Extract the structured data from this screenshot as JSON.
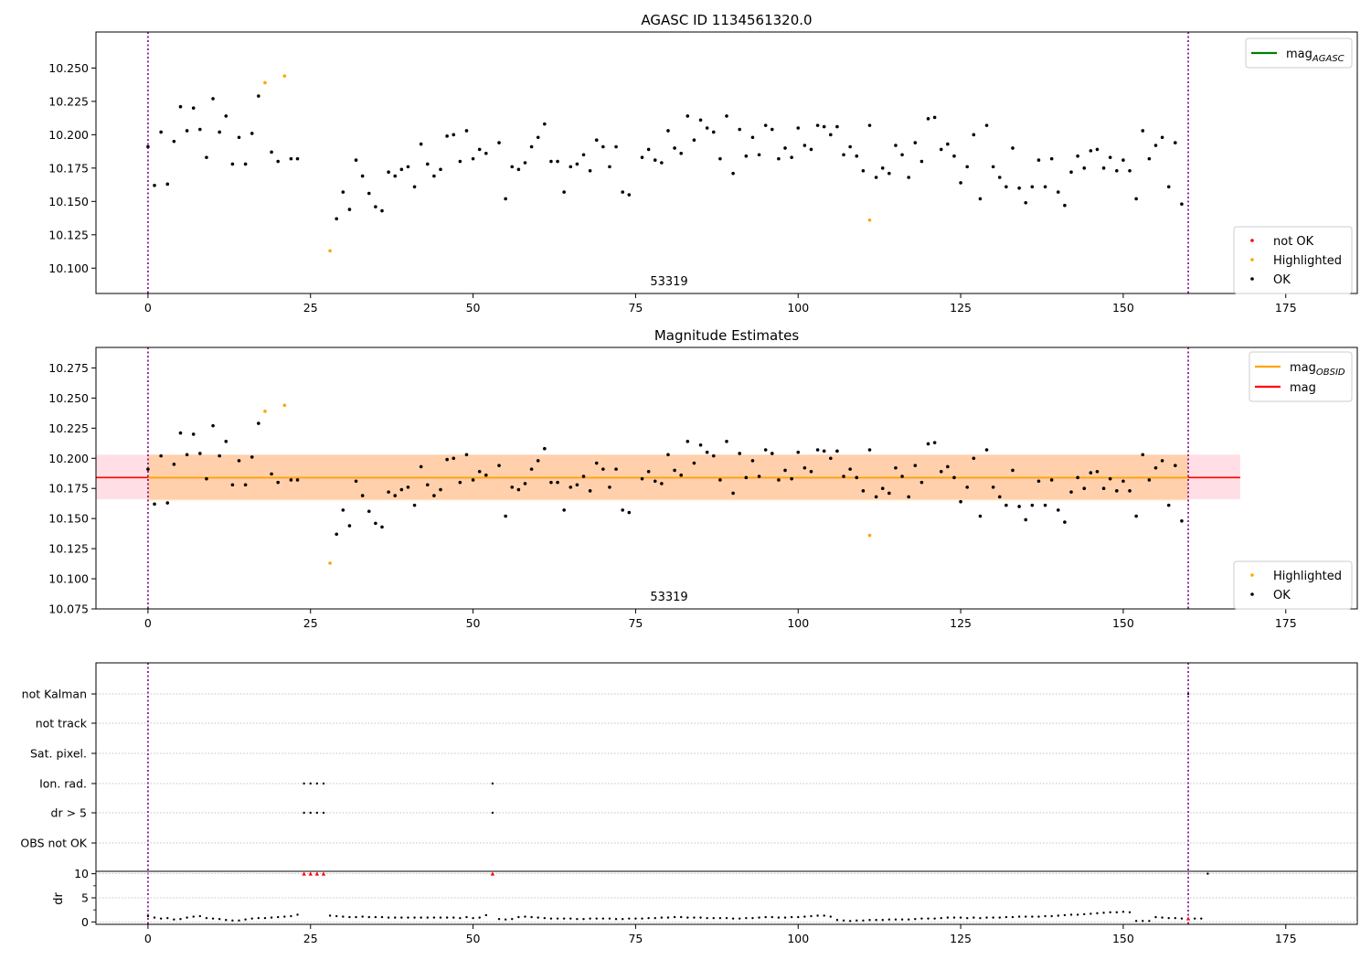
{
  "chart_data": [
    {
      "type": "scatter",
      "title": "AGASC ID 1134561320.0",
      "annotation": "53319",
      "xlim": [
        -8,
        186
      ],
      "ylim": [
        10.081,
        10.277
      ],
      "xticks": [
        "0",
        "25",
        "50",
        "75",
        "100",
        "125",
        "150",
        "175"
      ],
      "yticks": [
        "10.100",
        "10.125",
        "10.150",
        "10.175",
        "10.200",
        "10.225",
        "10.250"
      ],
      "vlines": [
        0,
        160
      ],
      "legend_lines": [
        {
          "label": "mag",
          "sub": "AGASC",
          "color": "#008000"
        }
      ],
      "legend_points": [
        {
          "label": "not OK",
          "color": "#ff0000"
        },
        {
          "label": "Highlighted",
          "color": "#ffa500"
        },
        {
          "label": "OK",
          "color": "#000000"
        }
      ],
      "series": [
        {
          "name": "OK",
          "color": "#000000",
          "points": [
            [
              0,
              10.191
            ],
            [
              1,
              10.162
            ],
            [
              2,
              10.202
            ],
            [
              3,
              10.163
            ],
            [
              4,
              10.195
            ],
            [
              5,
              10.221
            ],
            [
              6,
              10.203
            ],
            [
              7,
              10.22
            ],
            [
              8,
              10.204
            ],
            [
              9,
              10.183
            ],
            [
              10,
              10.227
            ],
            [
              11,
              10.202
            ],
            [
              12,
              10.214
            ],
            [
              13,
              10.178
            ],
            [
              14,
              10.198
            ],
            [
              15,
              10.178
            ],
            [
              16,
              10.201
            ],
            [
              17,
              10.229
            ],
            [
              19,
              10.187
            ],
            [
              20,
              10.18
            ],
            [
              22,
              10.182
            ],
            [
              23,
              10.182
            ],
            [
              29,
              10.137
            ],
            [
              30,
              10.157
            ],
            [
              31,
              10.144
            ],
            [
              32,
              10.181
            ],
            [
              33,
              10.169
            ],
            [
              34,
              10.156
            ],
            [
              35,
              10.146
            ],
            [
              36,
              10.143
            ],
            [
              37,
              10.172
            ],
            [
              38,
              10.169
            ],
            [
              39,
              10.174
            ],
            [
              40,
              10.176
            ],
            [
              41,
              10.161
            ],
            [
              42,
              10.193
            ],
            [
              43,
              10.178
            ],
            [
              44,
              10.169
            ],
            [
              45,
              10.174
            ],
            [
              46,
              10.199
            ],
            [
              47,
              10.2
            ],
            [
              48,
              10.18
            ],
            [
              49,
              10.203
            ],
            [
              50,
              10.182
            ],
            [
              51,
              10.189
            ],
            [
              52,
              10.186
            ],
            [
              54,
              10.194
            ],
            [
              55,
              10.152
            ],
            [
              56,
              10.176
            ],
            [
              57,
              10.174
            ],
            [
              58,
              10.179
            ],
            [
              59,
              10.191
            ],
            [
              60,
              10.198
            ],
            [
              61,
              10.208
            ],
            [
              62,
              10.18
            ],
            [
              63,
              10.18
            ],
            [
              64,
              10.157
            ],
            [
              65,
              10.176
            ],
            [
              66,
              10.178
            ],
            [
              67,
              10.185
            ],
            [
              68,
              10.173
            ],
            [
              69,
              10.196
            ],
            [
              70,
              10.191
            ],
            [
              71,
              10.176
            ],
            [
              72,
              10.191
            ],
            [
              73,
              10.157
            ],
            [
              74,
              10.155
            ],
            [
              76,
              10.183
            ],
            [
              77,
              10.189
            ],
            [
              78,
              10.181
            ],
            [
              79,
              10.179
            ],
            [
              80,
              10.203
            ],
            [
              81,
              10.19
            ],
            [
              82,
              10.186
            ],
            [
              83,
              10.214
            ],
            [
              84,
              10.196
            ],
            [
              85,
              10.211
            ],
            [
              86,
              10.205
            ],
            [
              87,
              10.202
            ],
            [
              88,
              10.182
            ],
            [
              89,
              10.214
            ],
            [
              90,
              10.171
            ],
            [
              91,
              10.204
            ],
            [
              92,
              10.184
            ],
            [
              93,
              10.198
            ],
            [
              94,
              10.185
            ],
            [
              95,
              10.207
            ],
            [
              96,
              10.204
            ],
            [
              97,
              10.182
            ],
            [
              98,
              10.19
            ],
            [
              99,
              10.183
            ],
            [
              100,
              10.205
            ],
            [
              101,
              10.192
            ],
            [
              102,
              10.189
            ],
            [
              103,
              10.207
            ],
            [
              104,
              10.206
            ],
            [
              105,
              10.2
            ],
            [
              106,
              10.206
            ],
            [
              107,
              10.185
            ],
            [
              108,
              10.191
            ],
            [
              109,
              10.184
            ],
            [
              110,
              10.173
            ],
            [
              111,
              10.207
            ],
            [
              112,
              10.168
            ],
            [
              113,
              10.175
            ],
            [
              114,
              10.171
            ],
            [
              115,
              10.192
            ],
            [
              116,
              10.185
            ],
            [
              117,
              10.168
            ],
            [
              118,
              10.194
            ],
            [
              119,
              10.18
            ],
            [
              120,
              10.212
            ],
            [
              121,
              10.213
            ],
            [
              122,
              10.189
            ],
            [
              123,
              10.193
            ],
            [
              124,
              10.184
            ],
            [
              125,
              10.164
            ],
            [
              126,
              10.176
            ],
            [
              127,
              10.2
            ],
            [
              128,
              10.152
            ],
            [
              129,
              10.207
            ],
            [
              130,
              10.176
            ],
            [
              131,
              10.168
            ],
            [
              132,
              10.161
            ],
            [
              133,
              10.19
            ],
            [
              134,
              10.16
            ],
            [
              135,
              10.149
            ],
            [
              136,
              10.161
            ],
            [
              137,
              10.181
            ],
            [
              138,
              10.161
            ],
            [
              139,
              10.182
            ],
            [
              140,
              10.157
            ],
            [
              141,
              10.147
            ],
            [
              142,
              10.172
            ],
            [
              143,
              10.184
            ],
            [
              144,
              10.175
            ],
            [
              145,
              10.188
            ],
            [
              146,
              10.189
            ],
            [
              147,
              10.175
            ],
            [
              148,
              10.183
            ],
            [
              149,
              10.173
            ],
            [
              150,
              10.181
            ],
            [
              151,
              10.173
            ],
            [
              152,
              10.152
            ],
            [
              153,
              10.203
            ],
            [
              154,
              10.182
            ],
            [
              155,
              10.192
            ],
            [
              156,
              10.198
            ],
            [
              157,
              10.161
            ],
            [
              158,
              10.194
            ],
            [
              159,
              10.148
            ]
          ]
        },
        {
          "name": "Highlighted",
          "color": "#ffa500",
          "points": [
            [
              18,
              10.239
            ],
            [
              21,
              10.244
            ],
            [
              28,
              10.113
            ],
            [
              111,
              10.136
            ]
          ]
        }
      ]
    },
    {
      "type": "scatter",
      "title": "Magnitude Estimates",
      "annotation": "53319",
      "xlim": [
        -8,
        186
      ],
      "ylim": [
        10.075,
        10.292
      ],
      "xticks": [
        "0",
        "25",
        "50",
        "75",
        "100",
        "125",
        "150",
        "175"
      ],
      "yticks": [
        "10.075",
        "10.100",
        "10.125",
        "10.150",
        "10.175",
        "10.200",
        "10.225",
        "10.250",
        "10.275"
      ],
      "vlines": [
        0,
        160
      ],
      "bands": [
        {
          "x0": -8,
          "x1": 168,
          "y0": 10.166,
          "y1": 10.203,
          "color": "#ffc0cb",
          "opacity": 0.5
        },
        {
          "x0": 0,
          "x1": 160,
          "y0": 10.165,
          "y1": 10.203,
          "color": "#ffa500",
          "opacity": 0.25
        }
      ],
      "hlines": [
        {
          "y": 10.184,
          "x0": -8,
          "x1": 168,
          "color": "#ff0000"
        },
        {
          "y": 10.184,
          "x0": 0,
          "x1": 160,
          "color": "#ffa500"
        }
      ],
      "legend_lines": [
        {
          "label": "mag",
          "sub": "OBSID",
          "color": "#ffa500"
        },
        {
          "label": "mag",
          "sub": "",
          "color": "#ff0000"
        }
      ],
      "legend_points": [
        {
          "label": "Highlighted",
          "color": "#ffa500"
        },
        {
          "label": "OK",
          "color": "#000000"
        }
      ],
      "series": "same as chart 1"
    },
    {
      "type": "flags",
      "xlim": [
        -8,
        186
      ],
      "xticks": [
        "0",
        "25",
        "50",
        "75",
        "100",
        "125",
        "150",
        "175"
      ],
      "vlines": [
        0,
        160
      ],
      "flag_rows": [
        "not Kalman",
        "not track",
        "Sat. pixel.",
        "Ion. rad.",
        "dr > 5",
        "OBS not OK"
      ],
      "flag_points": {
        "Ion. rad.": [
          24,
          25,
          26,
          27,
          53
        ],
        "dr > 5": [
          24,
          25,
          26,
          27,
          53
        ],
        "not Kalman": [
          160
        ]
      },
      "dr": {
        "ylabel": "dr",
        "ylim": [
          -0.5,
          10.5
        ],
        "yticks": [
          "0",
          "5",
          "10"
        ],
        "values": [
          1.2,
          0.9,
          0.7,
          0.8,
          0.5,
          0.6,
          0.9,
          1.1,
          1.2,
          0.8,
          0.7,
          0.6,
          0.4,
          0.3,
          0.3,
          0.5,
          0.7,
          0.8,
          0.8,
          0.9,
          1.0,
          1.1,
          1.2,
          1.5,
          10,
          10,
          10,
          10,
          1.3,
          1.2,
          1.1,
          1.0,
          1.0,
          1.1,
          1.0,
          1.0,
          1.0,
          0.9,
          0.9,
          0.9,
          0.9,
          0.9,
          0.9,
          0.9,
          0.9,
          0.9,
          0.9,
          0.9,
          0.8,
          1.0,
          0.8,
          0.9,
          1.4,
          10,
          0.6,
          0.5,
          0.6,
          1.0,
          1.1,
          1.0,
          0.9,
          0.8,
          0.7,
          0.7,
          0.7,
          0.7,
          0.6,
          0.6,
          0.7,
          0.7,
          0.7,
          0.7,
          0.6,
          0.6,
          0.7,
          0.7,
          0.7,
          0.8,
          0.8,
          0.9,
          0.9,
          1.0,
          1.0,
          0.9,
          0.9,
          0.9,
          0.8,
          0.8,
          0.8,
          0.8,
          0.7,
          0.7,
          0.8,
          0.8,
          0.9,
          1.0,
          1.0,
          0.9,
          0.9,
          1.0,
          1.0,
          1.1,
          1.2,
          1.3,
          1.3,
          1.1,
          0.4,
          0.3,
          0.2,
          0.3,
          0.3,
          0.4,
          0.4,
          0.4,
          0.5,
          0.5,
          0.5,
          0.5,
          0.6,
          0.7,
          0.7,
          0.7,
          0.8,
          0.9,
          0.9,
          0.9,
          0.8,
          0.9,
          0.8,
          0.9,
          0.9,
          0.9,
          1.0,
          1.0,
          1.1,
          1.1,
          1.1,
          1.1,
          1.2,
          1.2,
          1.3,
          1.4,
          1.5,
          1.5,
          1.6,
          1.7,
          1.8,
          1.9,
          2.0,
          2.0,
          2.1,
          2.0,
          0.2,
          0.2,
          0.2,
          1.0,
          0.9,
          0.8,
          0.8,
          0.7,
          0.7,
          0.7,
          0.7,
          10
        ],
        "red_markers": [
          24,
          25,
          26,
          27,
          53,
          160
        ]
      }
    }
  ]
}
